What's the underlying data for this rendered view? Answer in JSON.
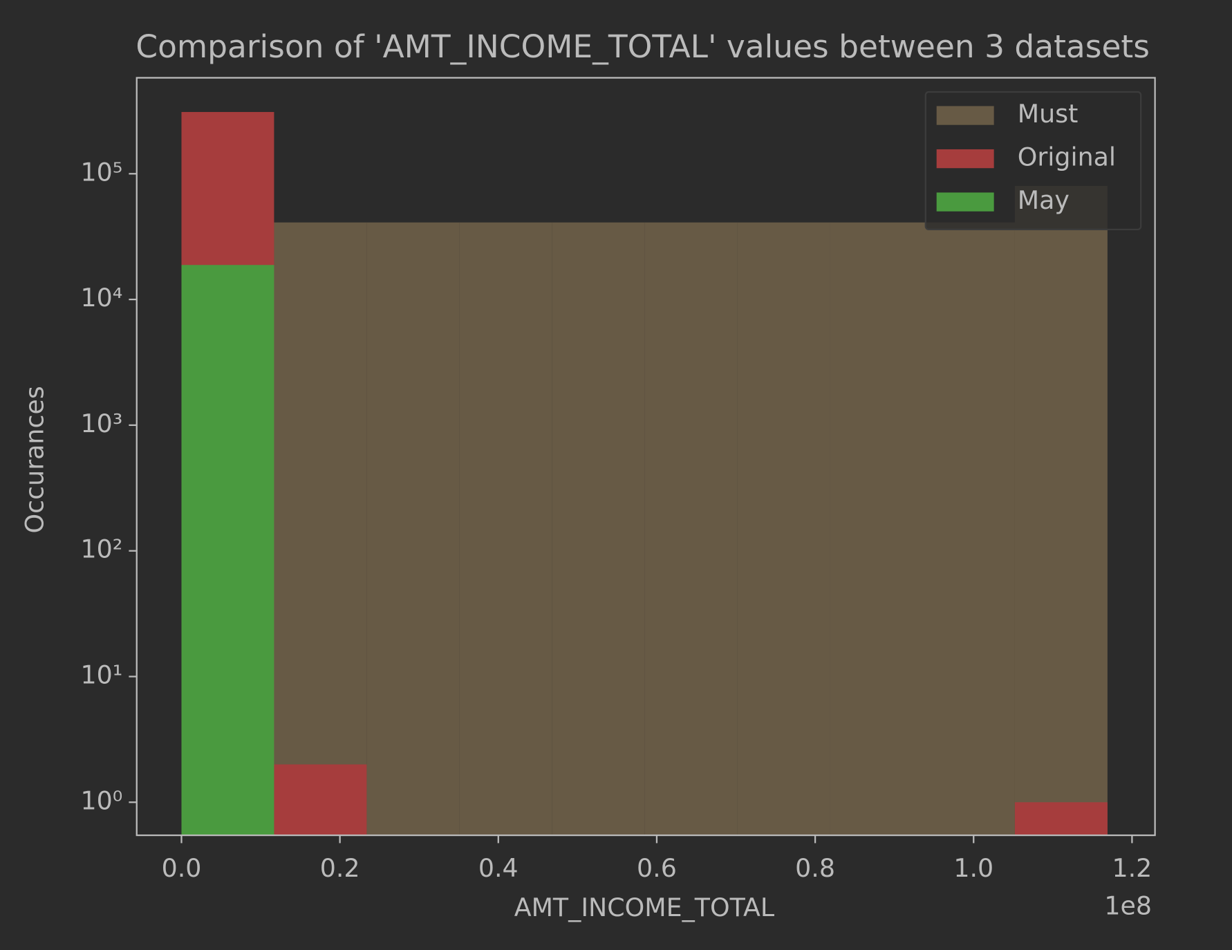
{
  "chart_data": {
    "type": "histogram",
    "title": "Comparison of 'AMT_INCOME_TOTAL' values between 3 datasets",
    "x_label": "AMT_INCOME_TOTAL",
    "x_offset_label": "1e8",
    "y_label": "Occurances",
    "bins": [
      0,
      11690000,
      23380000,
      35070000,
      46760000,
      58450000,
      70140000,
      81830000,
      93520000,
      105210000,
      116900000
    ],
    "series": [
      {
        "name": "Must",
        "color": "#675a45",
        "values": [
          41000,
          41000,
          41000,
          41000,
          41000,
          41000,
          41000,
          41000,
          41000,
          80000
        ]
      },
      {
        "name": "Original",
        "color": "#a63d3d",
        "values": [
          310000,
          2,
          0,
          0,
          0,
          0,
          0,
          0,
          0,
          1
        ]
      },
      {
        "name": "May",
        "color": "#4a9a3f",
        "values": [
          18800,
          0,
          0,
          0,
          0,
          0,
          0,
          0,
          0,
          0
        ]
      }
    ],
    "xlim": [
      -5650000,
      122900000
    ],
    "xticks": [
      {
        "value": 0,
        "label": "0.0"
      },
      {
        "value": 20000000,
        "label": "0.2"
      },
      {
        "value": 40000000,
        "label": "0.4"
      },
      {
        "value": 60000000,
        "label": "0.6"
      },
      {
        "value": 80000000,
        "label": "0.8"
      },
      {
        "value": 100000000,
        "label": "1.0"
      },
      {
        "value": 120000000,
        "label": "1.2"
      }
    ],
    "ylim": [
      0.546,
      580000
    ],
    "yticks": [
      {
        "value": 1,
        "label": "10⁰"
      },
      {
        "value": 10,
        "label": "10¹"
      },
      {
        "value": 100,
        "label": "10²"
      },
      {
        "value": 1000,
        "label": "10³"
      },
      {
        "value": 10000,
        "label": "10⁴"
      },
      {
        "value": 100000,
        "label": "10⁵"
      }
    ],
    "y_scale": "log",
    "legend": "upper right"
  }
}
